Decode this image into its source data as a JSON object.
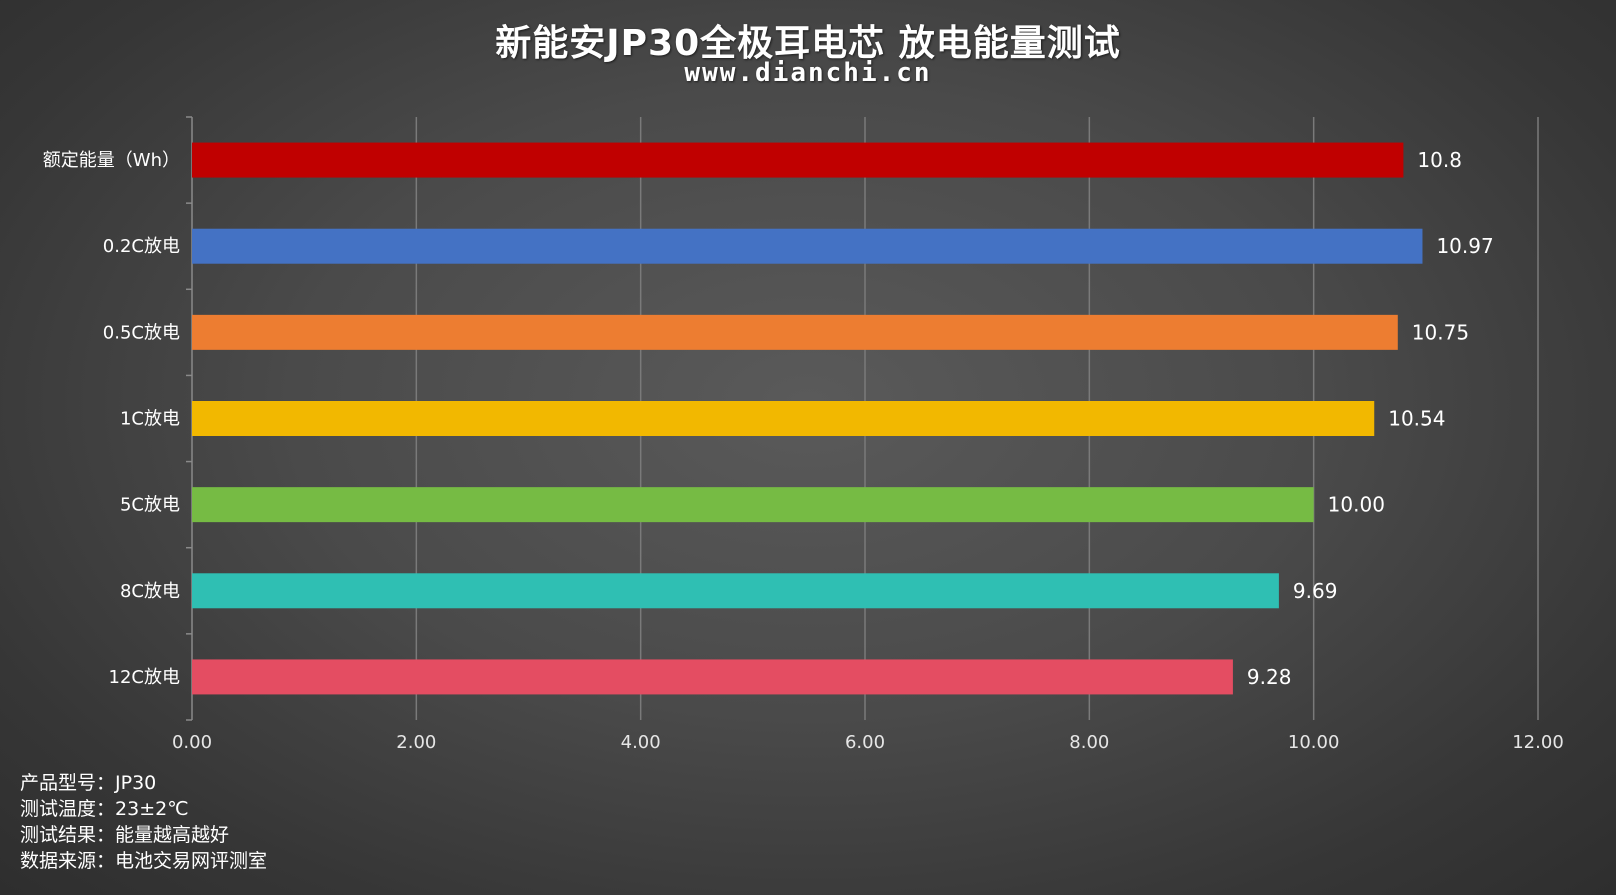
{
  "title": "新能安JP30全极耳电芯 放电能量测试",
  "subtitle": "www.dianchi.cn",
  "notes": [
    {
      "label": "产品型号：",
      "value": "JP30"
    },
    {
      "label": "测试温度：",
      "value": "23±2℃"
    },
    {
      "label": "测试结果：",
      "value": "能量越高越好"
    },
    {
      "label": "数据来源：",
      "value": "电池交易网评测室"
    }
  ],
  "chart_data": {
    "type": "bar",
    "orientation": "horizontal",
    "categories": [
      "额定能量（Wh）",
      "0.2C放电",
      "0.5C放电",
      "1C放电",
      "5C放电",
      "8C放电",
      "12C放电"
    ],
    "values": [
      10.8,
      10.97,
      10.75,
      10.54,
      10.0,
      9.69,
      9.28
    ],
    "value_labels": [
      "10.8",
      "10.97",
      "10.75",
      "10.54",
      "10.00",
      "9.69",
      "9.28"
    ],
    "colors": [
      "#c00000",
      "#4472c4",
      "#ed7d31",
      "#f2b800",
      "#76bb44",
      "#2fbfb3",
      "#e44d62"
    ],
    "xlim": [
      0,
      12
    ],
    "x_ticks": [
      "0.00",
      "2.00",
      "4.00",
      "6.00",
      "8.00",
      "10.00",
      "12.00"
    ],
    "grid": "vertical",
    "legend": "none",
    "xlabel": "",
    "ylabel": ""
  }
}
